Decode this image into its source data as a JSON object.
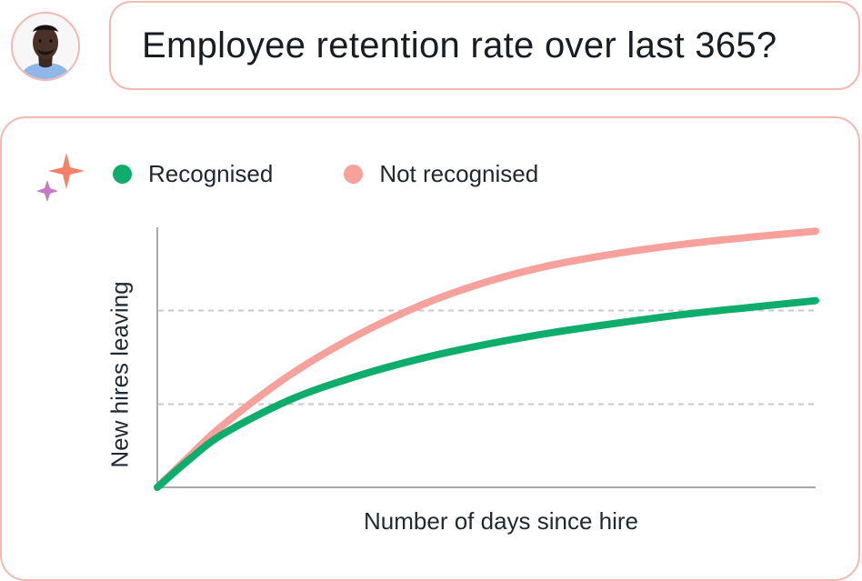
{
  "question": {
    "text": "Employee retention rate over last 365?"
  },
  "avatar": {
    "icon": "user-avatar"
  },
  "answer": {
    "icon": "sparkle-icon"
  },
  "colors": {
    "recognised": "#0fad6b",
    "not_recognised": "#f6a19b",
    "card_border": "#f3b8b1",
    "grid": "#c9c9c9",
    "axis": "#8d8d8d"
  },
  "chart_data": {
    "type": "line",
    "title": "",
    "xlabel": "Number of days since hire",
    "ylabel": "New hires leaving",
    "x_axis_ticks": [],
    "y_axis_ticks": [],
    "grid": {
      "horizontal": true,
      "vertical": false
    },
    "legend": {
      "placement": "top-left",
      "entries": [
        "Recognised",
        "Not recognised"
      ]
    },
    "x": [
      0,
      0.05,
      0.1,
      0.2,
      0.3,
      0.4,
      0.5,
      0.6,
      0.7,
      0.8,
      0.9,
      1.0
    ],
    "xlim": [
      0,
      1
    ],
    "ylim": [
      0,
      1
    ],
    "series": [
      {
        "name": "Recognised",
        "values": [
          0.0,
          0.11,
          0.205,
          0.335,
          0.425,
          0.495,
          0.55,
          0.595,
          0.632,
          0.665,
          0.692,
          0.718
        ]
      },
      {
        "name": "Not recognised",
        "values": [
          0.0,
          0.123,
          0.24,
          0.43,
          0.58,
          0.7,
          0.79,
          0.855,
          0.9,
          0.935,
          0.962,
          0.985
        ]
      }
    ],
    "gridlines_y": [
      0.32,
      0.68
    ]
  }
}
